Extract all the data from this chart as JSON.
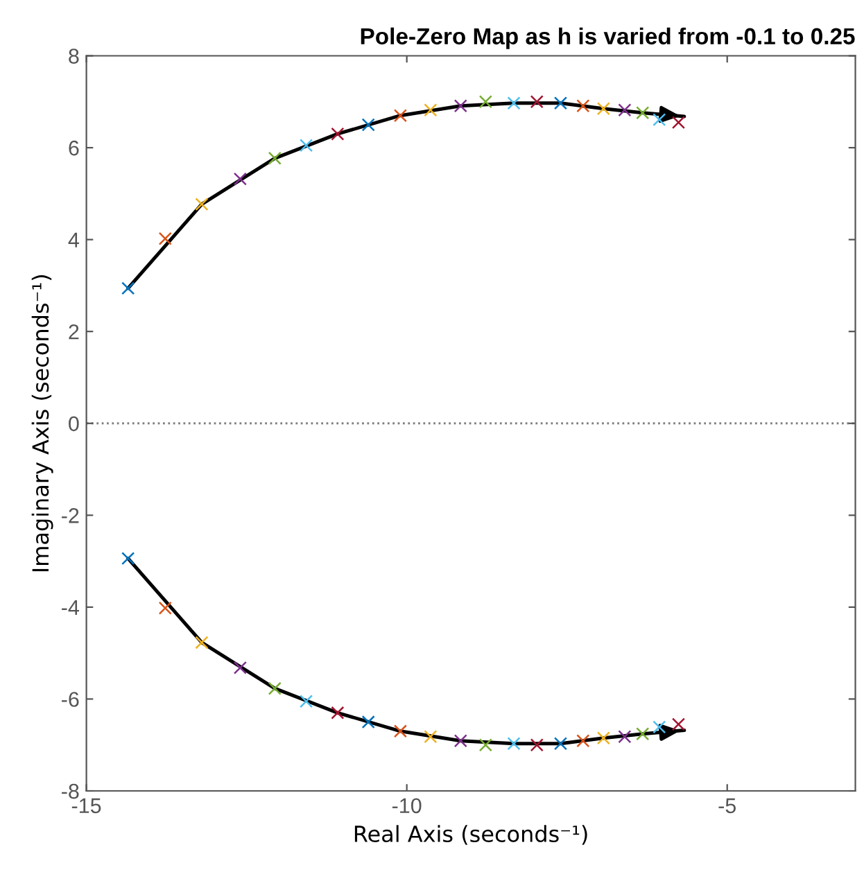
{
  "chart_data": {
    "type": "scatter",
    "title": "Pole-Zero Map as h is varied from -0.1 to 0.25",
    "xlabel": "Real Axis (seconds⁻¹)",
    "ylabel": "Imaginary Axis (seconds⁻¹)",
    "xlim": [
      -15,
      -3
    ],
    "xticks": [
      -15,
      -10,
      -5
    ],
    "ylim": [
      -8,
      8
    ],
    "yticks": [
      -8,
      -6,
      -4,
      -2,
      0,
      2,
      4,
      6,
      8
    ],
    "grid": false,
    "marker": "cross",
    "ref_lines": [
      {
        "axis": "y",
        "value": 0,
        "color": "#808080",
        "line_style": "dotted"
      }
    ],
    "series": [
      {
        "x": [
          -14.35,
          -13.77,
          -13.2,
          -12.6,
          -12.06,
          -11.57,
          -11.08,
          -10.6,
          -10.1,
          -9.63,
          -9.16,
          -8.77,
          -8.33,
          -7.97,
          -7.6,
          -7.25,
          -6.93,
          -6.6,
          -6.32,
          -6.06,
          -5.76
        ],
        "values": [
          2.94,
          4.02,
          4.77,
          5.32,
          5.77,
          6.05,
          6.3,
          6.5,
          6.7,
          6.82,
          6.91,
          7.0,
          6.97,
          7.0,
          6.97,
          6.91,
          6.85,
          6.82,
          6.76,
          6.61,
          6.55
        ],
        "colors": [
          "#0072bd",
          "#d95319",
          "#edb120",
          "#7e2f8e",
          "#77ac30",
          "#4dbeee",
          "#a2142f",
          "#0072bd",
          "#d95319",
          "#edb120",
          "#7e2f8e",
          "#77ac30",
          "#4dbeee",
          "#a2142f",
          "#0072bd",
          "#d95319",
          "#edb120",
          "#7e2f8e",
          "#77ac30",
          "#4dbeee",
          "#a2142f"
        ]
      },
      {
        "x": [
          -14.35,
          -13.77,
          -13.2,
          -12.6,
          -12.06,
          -11.57,
          -11.08,
          -10.6,
          -10.1,
          -9.63,
          -9.16,
          -8.77,
          -8.33,
          -7.97,
          -7.6,
          -7.25,
          -6.93,
          -6.6,
          -6.32,
          -6.06,
          -5.76
        ],
        "values": [
          -2.94,
          -4.02,
          -4.77,
          -5.32,
          -5.77,
          -6.05,
          -6.3,
          -6.5,
          -6.7,
          -6.82,
          -6.91,
          -7.0,
          -6.97,
          -7.0,
          -6.97,
          -6.91,
          -6.85,
          -6.82,
          -6.76,
          -6.61,
          -6.55
        ],
        "colors": [
          "#0072bd",
          "#d95319",
          "#edb120",
          "#7e2f8e",
          "#77ac30",
          "#4dbeee",
          "#a2142f",
          "#0072bd",
          "#d95319",
          "#edb120",
          "#7e2f8e",
          "#77ac30",
          "#4dbeee",
          "#a2142f",
          "#0072bd",
          "#d95319",
          "#edb120",
          "#7e2f8e",
          "#77ac30",
          "#4dbeee",
          "#a2142f"
        ]
      },
      {
        "type": "line",
        "color": "#000000",
        "marker": "none",
        "x": [
          -14.35,
          -13.2,
          -12.06,
          -11.08,
          -10.1,
          -9.16,
          -8.33,
          -7.6,
          -6.93,
          -6.32,
          -5.67
        ],
        "values": [
          2.94,
          4.77,
          5.77,
          6.3,
          6.7,
          6.91,
          6.97,
          6.97,
          6.85,
          6.76,
          6.68
        ]
      },
      {
        "type": "line",
        "color": "#000000",
        "marker": "none",
        "x": [
          -14.35,
          -13.2,
          -12.06,
          -11.08,
          -10.1,
          -9.16,
          -8.33,
          -7.6,
          -6.93,
          -6.32,
          -5.67
        ],
        "values": [
          -2.94,
          -4.77,
          -5.77,
          -6.3,
          -6.7,
          -6.91,
          -6.97,
          -6.97,
          -6.85,
          -6.76,
          -6.68
        ]
      }
    ]
  }
}
